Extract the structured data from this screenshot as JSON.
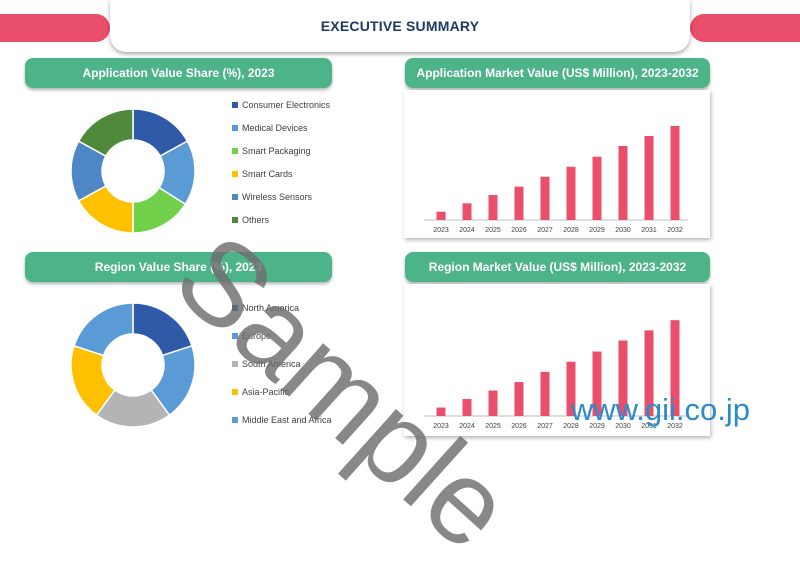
{
  "header": {
    "title": "EXECUTIVE SUMMARY"
  },
  "watermark": "Sample",
  "website": "www.gii.co.jp",
  "colors": {
    "accent": "#e94e6a",
    "panel_header": "#4db389",
    "title": "#1f3864",
    "bar": "#e94e6a"
  },
  "chart_data": [
    {
      "type": "pie",
      "title": "Application Value Share (%), 2023",
      "categories": [
        "Consumer Electronics",
        "Medical Devices",
        "Smart Packaging",
        "Smart Cards",
        "Wireless Sensors",
        "Others"
      ],
      "values": [
        17,
        17,
        16,
        17,
        16,
        17
      ],
      "colors": [
        "#2e5aa8",
        "#5b9bd5",
        "#70d04a",
        "#ffc000",
        "#4f86c6",
        "#4e8a3a"
      ]
    },
    {
      "type": "bar",
      "title": "Application Market Value (US$ Million), 2023-2032",
      "categories": [
        "2023",
        "2024",
        "2025",
        "2026",
        "2027",
        "2028",
        "2029",
        "2030",
        "2031",
        "2032"
      ],
      "values": [
        10,
        20,
        30,
        40,
        52,
        64,
        76,
        89,
        101,
        113
      ],
      "ylim": [
        0,
        125
      ]
    },
    {
      "type": "pie",
      "title": "Region Value Share (%), 2023",
      "categories": [
        "North America",
        "Europe",
        "South America",
        "Asia-Pacific",
        "Middle East and Africa"
      ],
      "values": [
        20,
        20,
        20,
        20,
        20
      ],
      "colors": [
        "#2e5aa8",
        "#5b9bd5",
        "#b4b4b4",
        "#ffc000",
        "#5b9bd5"
      ]
    },
    {
      "type": "bar",
      "title": "Region Market Value (US$ Million), 2023-2032",
      "categories": [
        "2023",
        "2024",
        "2025",
        "2026",
        "2027",
        "2028",
        "2029",
        "2030",
        "2031",
        "2032"
      ],
      "values": [
        10,
        20,
        30,
        40,
        52,
        64,
        76,
        89,
        101,
        113
      ],
      "ylim": [
        0,
        125
      ]
    }
  ]
}
